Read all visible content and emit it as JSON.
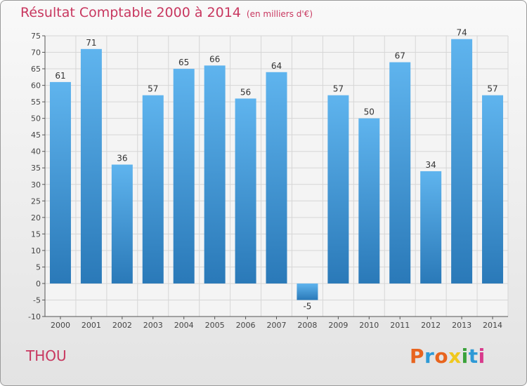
{
  "title": "Résultat Comptable 2000 à 2014",
  "unit_label": "(en milliers d'€)",
  "commune": "THOU",
  "brand": {
    "text": "Proxiti",
    "letter_colors": [
      "#e8641e",
      "#2e9ad6",
      "#e8641e",
      "#f0c81e",
      "#3aa23a",
      "#2e9ad6",
      "#d83a8c"
    ]
  },
  "colors": {
    "title": "#c8375f",
    "bar_light": "#5fb4ee",
    "bar_dark": "#2a79b8",
    "grid": "#d6d6d6"
  },
  "chart_data": {
    "type": "bar",
    "categories": [
      "2000",
      "2001",
      "2002",
      "2003",
      "2004",
      "2005",
      "2006",
      "2007",
      "2008",
      "2009",
      "2010",
      "2011",
      "2012",
      "2013",
      "2014"
    ],
    "values": [
      61,
      71,
      36,
      57,
      65,
      66,
      56,
      64,
      -5,
      57,
      50,
      67,
      34,
      74,
      57
    ],
    "ylim": [
      -10,
      75
    ],
    "yticks": [
      -10,
      -5,
      0,
      5,
      10,
      15,
      20,
      25,
      30,
      35,
      40,
      45,
      50,
      55,
      60,
      65,
      70,
      75
    ],
    "grid": true,
    "data_labels": true,
    "title": "Résultat Comptable 2000 à 2014",
    "xlabel": "",
    "ylabel": ""
  }
}
